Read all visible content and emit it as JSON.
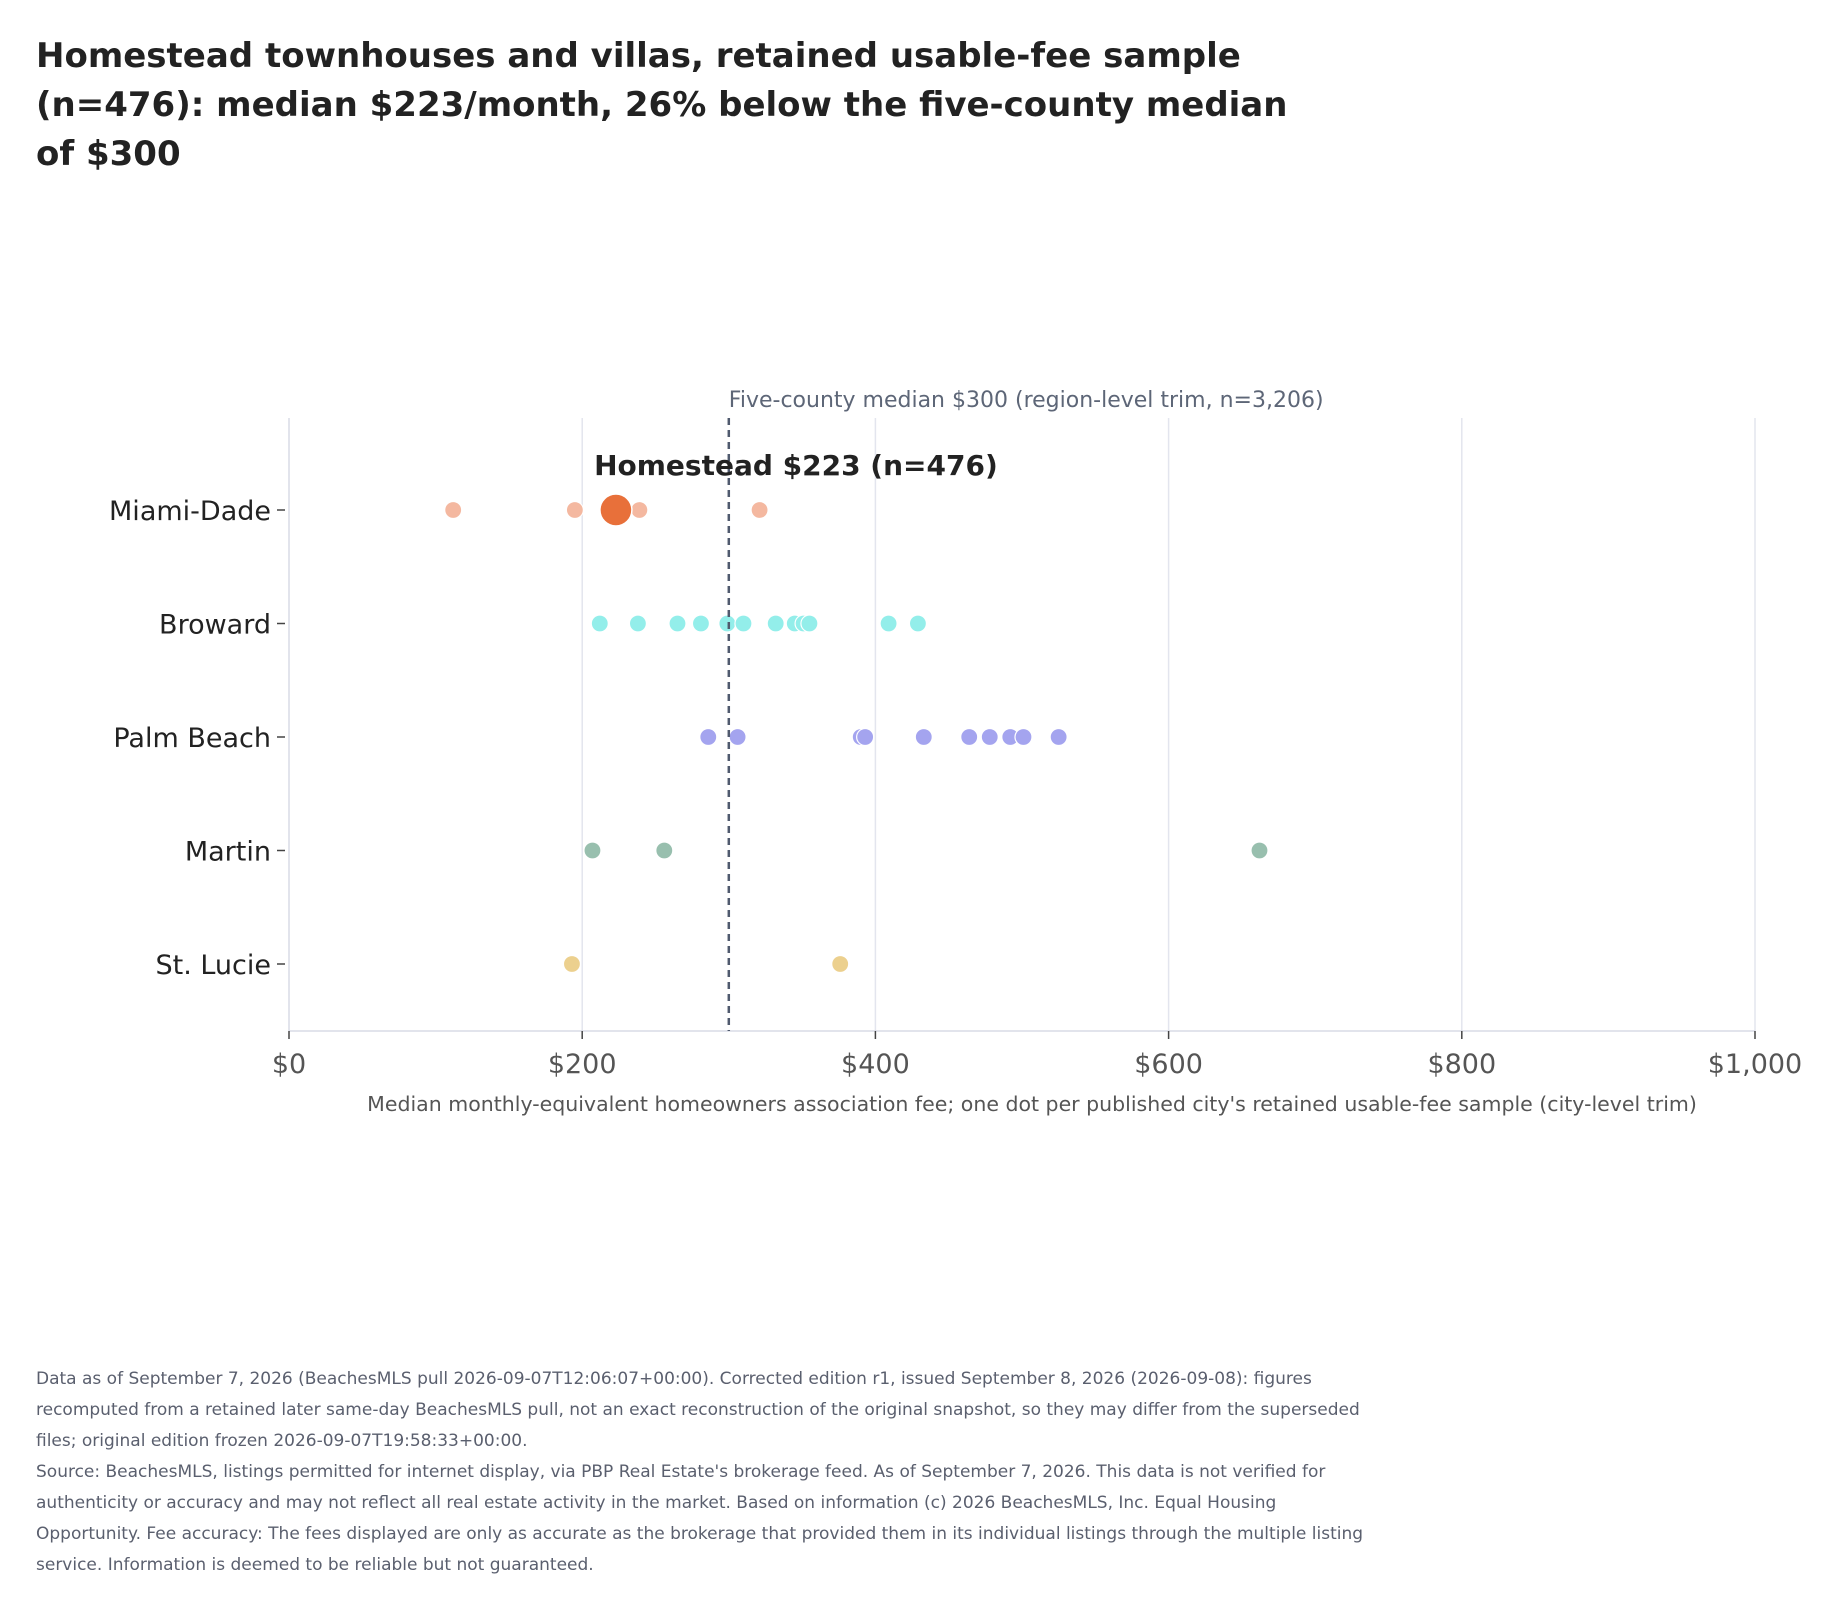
{
  "title": "Homestead townhouses and villas, retained usable-fee sample (n=476): median $223/month, 26% below the five-county median of $300",
  "chart_data": {
    "type": "scatter",
    "categories": [
      "Miami-Dade",
      "Broward",
      "Palm Beach",
      "Martin",
      "St. Lucie"
    ],
    "x_ticks": [
      0,
      200,
      400,
      600,
      800,
      1000
    ],
    "x_tick_labels": [
      "$0",
      "$200",
      "$400",
      "$600",
      "$800",
      "$1,000"
    ],
    "xlim": [
      0,
      1000
    ],
    "xlabel": "Median monthly-equivalent homeowners association fee; one dot per published city's retained usable-fee sample (city-level trim)",
    "grid": true,
    "series": [
      {
        "category": "Miami-Dade",
        "color": "#f4b8a0",
        "values": [
          112,
          195,
          239,
          321
        ]
      },
      {
        "category": "Broward",
        "color": "#93eeea",
        "values": [
          212,
          238,
          265,
          281,
          299,
          310,
          332,
          345,
          351,
          355,
          409,
          429
        ]
      },
      {
        "category": "Palm Beach",
        "color": "#a4a4ef",
        "values": [
          286,
          306,
          390,
          393,
          433,
          464,
          478,
          492,
          501,
          525
        ]
      },
      {
        "category": "Martin",
        "color": "#98bfae",
        "values": [
          207,
          256,
          662
        ]
      },
      {
        "category": "St. Lucie",
        "color": "#ecd08e",
        "values": [
          193,
          376
        ]
      }
    ],
    "highlight": {
      "category": "Miami-Dade",
      "value": 223,
      "label": "Homestead $223 (n=476)",
      "color": "#e8703a"
    },
    "reference_line": {
      "value": 300,
      "label": "Five-county median $300 (region-level trim, n=3,206)",
      "color": "#505a6e"
    }
  },
  "footnote": {
    "line1": "Data as of September 7, 2026 (BeachesMLS pull 2026-09-07T12:06:07+00:00). Corrected edition r1, issued September 8, 2026 (2026-09-08): figures recomputed from a retained later same-day BeachesMLS pull, not an exact reconstruction of the original snapshot, so they may differ from the superseded files; original edition frozen 2026-09-07T19:58:33+00:00.",
    "line2": "Source: BeachesMLS, listings permitted for internet display, via PBP Real Estate's brokerage feed. As of September 7, 2026. This data is not verified for authenticity or accuracy and may not reflect all real estate activity in the market. Based on information (c) 2026 BeachesMLS, Inc. Equal Housing Opportunity. Fee accuracy: The fees displayed are only as accurate as the brokerage that provided them in its individual listings through the multiple listing service. Information is deemed to be reliable but not guaranteed."
  }
}
